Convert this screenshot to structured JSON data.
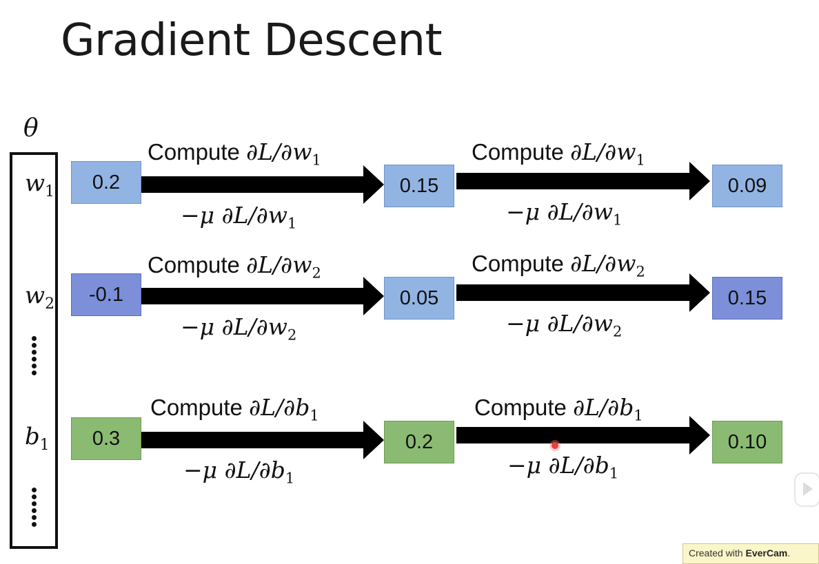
{
  "title": "Gradient Descent",
  "theta_label": "θ",
  "params": {
    "w1": {
      "base": "w",
      "sub": "1"
    },
    "w2": {
      "base": "w",
      "sub": "2"
    },
    "b1": {
      "base": "b",
      "sub": "1"
    }
  },
  "rows": [
    {
      "values": [
        "0.2",
        "0.15",
        "0.09"
      ],
      "compute_text": "Compute ",
      "grad_num": "∂L/∂",
      "grad_var": "w",
      "grad_sub": "1",
      "update_prefix": "−μ ",
      "color": "blue"
    },
    {
      "values": [
        "-0.1",
        "0.05",
        "0.15"
      ],
      "compute_text": "Compute ",
      "grad_num": "∂L/∂",
      "grad_var": "w",
      "grad_sub": "2",
      "update_prefix": "−μ ",
      "color": "purple"
    },
    {
      "values": [
        "0.3",
        "0.2",
        "0.10"
      ],
      "compute_text": "Compute ",
      "grad_num": "∂L/∂",
      "grad_var": "b",
      "grad_sub": "1",
      "update_prefix": "−μ ",
      "color": "green"
    }
  ],
  "watermark": {
    "prefix": "Created with ",
    "brand": "EverCam",
    "suffix": "."
  },
  "colors": {
    "blue": "#92b4e3",
    "purple": "#7c8fd8",
    "green": "#8bbb73"
  }
}
